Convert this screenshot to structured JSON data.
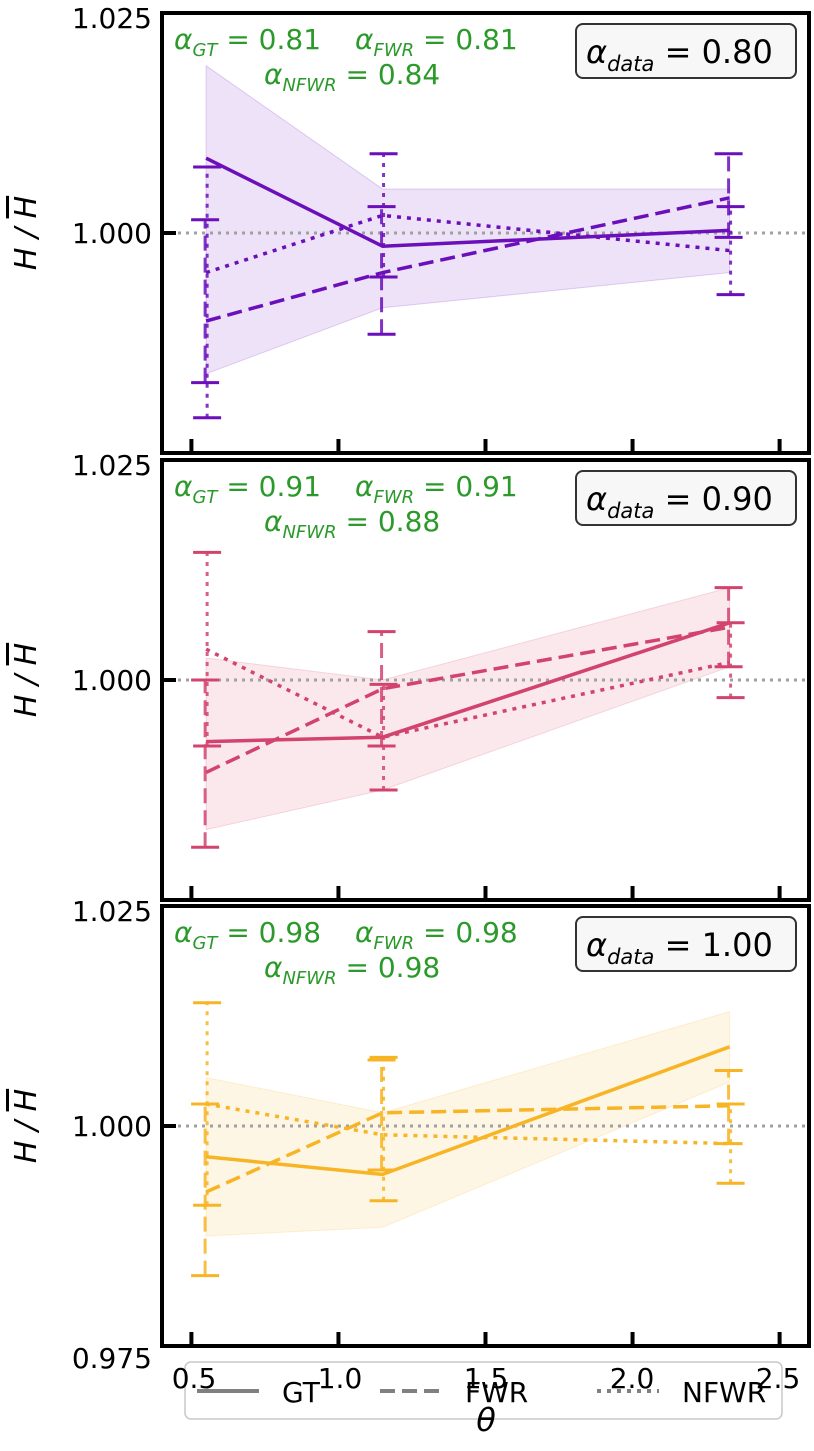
{
  "chart_data": {
    "type": "line",
    "xlabel": "θ",
    "ylabel_main": "H / ",
    "ylabel_bar": "H",
    "xlim": [
      0.4,
      2.6
    ],
    "ylim": [
      0.975,
      1.025
    ],
    "x_ticks": [
      "0.5",
      "1.0",
      "1.5",
      "2.0",
      "2.5"
    ],
    "y_ticks_top": "1.025",
    "y_ticks_mid": "1.000",
    "y_ticks_bottom": "0.975",
    "reference_line": 1.0,
    "x": [
      0.55,
      1.15,
      2.33
    ],
    "legend": [
      "GT",
      "FWR",
      "NFWR"
    ],
    "panels": [
      {
        "color": "#6a0fba",
        "alpha_data_label": "α",
        "alpha_data_sub": "data",
        "alpha_data_value": "= 0.80",
        "alpha_gt_value": "= 0.81",
        "alpha_fwr_value": "= 0.81",
        "alpha_nfwr_value": "= 0.84",
        "series": [
          {
            "name": "GT",
            "style": "solid",
            "values": [
              1.0085,
              0.9985,
              1.0003
            ],
            "band": [
              [
                0.984,
                1.019
              ],
              [
                0.9915,
                1.005
              ],
              [
                0.9955,
                1.005
              ]
            ]
          },
          {
            "name": "FWR",
            "style": "dashed",
            "values": [
              0.99,
              0.9955,
              1.004
            ],
            "err": [
              [
                0.983,
                1.0015
              ],
              [
                0.9885,
                1.003
              ],
              [
                0.9995,
                1.009
              ]
            ]
          },
          {
            "name": "NFWR",
            "style": "dotted",
            "values": [
              0.9955,
              1.002,
              0.998
            ],
            "err": [
              [
                0.979,
                1.0075
              ],
              [
                0.995,
                1.009
              ],
              [
                0.993,
                1.003
              ]
            ]
          }
        ]
      },
      {
        "color": "#d2436e",
        "alpha_data_label": "α",
        "alpha_data_sub": "data",
        "alpha_data_value": "= 0.90",
        "alpha_gt_value": "= 0.91",
        "alpha_fwr_value": "= 0.91",
        "alpha_nfwr_value": "= 0.88",
        "series": [
          {
            "name": "GT",
            "style": "solid",
            "values": [
              0.993,
              0.9935,
              1.0065
            ],
            "band": [
              [
                0.983,
                1.0025
              ],
              [
                0.9875,
                1.0
              ],
              [
                1.0015,
                1.0105
              ]
            ]
          },
          {
            "name": "FWR",
            "style": "dashed",
            "values": [
              0.9895,
              0.999,
              1.006
            ],
            "err": [
              [
                0.981,
                1.0
              ],
              [
                0.9925,
                1.0055
              ],
              [
                1.0015,
                1.0105
              ]
            ]
          },
          {
            "name": "NFWR",
            "style": "dotted",
            "values": [
              1.0035,
              0.9935,
              1.002
            ],
            "err": [
              [
                0.9925,
                1.0145
              ],
              [
                0.9875,
                0.9995
              ],
              [
                0.998,
                1.0065
              ]
            ]
          }
        ]
      },
      {
        "color": "#f7b425",
        "alpha_data_label": "α",
        "alpha_data_sub": "data",
        "alpha_data_value": "= 1.00",
        "alpha_gt_value": "= 0.98",
        "alpha_fwr_value": "= 0.98",
        "alpha_nfwr_value": "= 0.98",
        "series": [
          {
            "name": "GT",
            "style": "solid",
            "values": [
              0.9965,
              0.9945,
              1.009
            ],
            "band": [
              [
                0.9875,
                1.0055
              ],
              [
                0.9885,
                1.0015
              ],
              [
                1.005,
                1.013
              ]
            ]
          },
          {
            "name": "FWR",
            "style": "dashed",
            "values": [
              0.9925,
              1.0015,
              1.0023
            ],
            "err": [
              [
                0.983,
                1.0025
              ],
              [
                0.995,
                1.0075
              ],
              [
                0.998,
                1.0063
              ]
            ]
          },
          {
            "name": "NFWR",
            "style": "dotted",
            "values": [
              1.0025,
              0.999,
              0.998
            ],
            "err": [
              [
                0.991,
                1.014
              ],
              [
                0.9915,
                1.0078
              ],
              [
                0.9935,
                1.0025
              ]
            ]
          }
        ]
      }
    ]
  },
  "subscripts": {
    "gt": "GT",
    "fwr": "FWR",
    "nfwr": "NFWR"
  }
}
